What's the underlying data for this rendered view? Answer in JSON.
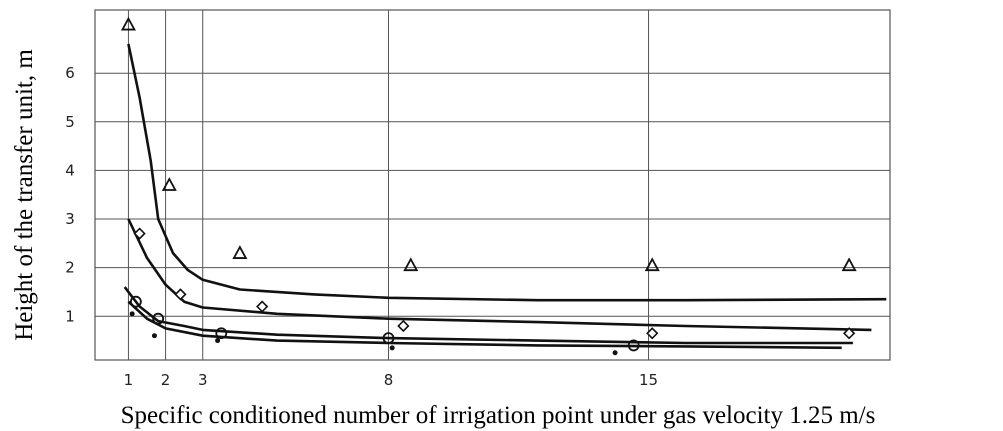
{
  "chart_data": {
    "type": "line",
    "xlabel": "Specific conditioned number of irrigation point under gas velocity 1.25 m/s",
    "ylabel": "Height of the transfer unit, m",
    "x_ticks": [
      "1",
      "2",
      "3",
      "8",
      "15"
    ],
    "y_ticks": [
      "1",
      "2",
      "3",
      "4",
      "5",
      "6"
    ],
    "xlim": [
      0.1,
      21.5
    ],
    "ylim": [
      0.1,
      7.3
    ],
    "grid": true,
    "series": [
      {
        "marker": "triangle",
        "points": [
          [
            1,
            7.0
          ],
          [
            2.1,
            3.7
          ],
          [
            4.0,
            2.3
          ],
          [
            8.6,
            2.05
          ],
          [
            15.1,
            2.05
          ],
          [
            20.4,
            2.05
          ]
        ]
      },
      {
        "marker": "diamond",
        "points": [
          [
            1.3,
            2.7
          ],
          [
            2.4,
            1.45
          ],
          [
            4.6,
            1.2
          ],
          [
            8.4,
            0.8
          ],
          [
            15.1,
            0.65
          ],
          [
            20.4,
            0.65
          ]
        ]
      },
      {
        "marker": "circle",
        "points": [
          [
            1.2,
            1.3
          ],
          [
            1.8,
            0.95
          ],
          [
            3.5,
            0.65
          ],
          [
            8.0,
            0.55
          ],
          [
            14.6,
            0.4
          ]
        ]
      },
      {
        "marker": "filled-dot",
        "points": [
          [
            1.1,
            1.05
          ],
          [
            1.7,
            0.6
          ],
          [
            3.4,
            0.5
          ],
          [
            8.1,
            0.35
          ],
          [
            14.1,
            0.25
          ]
        ]
      },
      {
        "marker": "none",
        "points": [
          [
            1,
            6.6
          ],
          [
            1.3,
            5.5
          ],
          [
            1.6,
            4.2
          ],
          [
            1.8,
            3.0
          ],
          [
            2.2,
            2.3
          ],
          [
            2.6,
            1.95
          ],
          [
            3,
            1.75
          ],
          [
            4,
            1.55
          ],
          [
            6,
            1.45
          ],
          [
            8,
            1.38
          ],
          [
            12,
            1.33
          ],
          [
            16,
            1.33
          ],
          [
            21.4,
            1.35
          ]
        ]
      },
      {
        "marker": "none",
        "points": [
          [
            1,
            3.0
          ],
          [
            1.5,
            2.2
          ],
          [
            2,
            1.65
          ],
          [
            2.5,
            1.3
          ],
          [
            3,
            1.18
          ],
          [
            5,
            1.05
          ],
          [
            8,
            0.95
          ],
          [
            12,
            0.88
          ],
          [
            16,
            0.8
          ],
          [
            21,
            0.72
          ]
        ]
      },
      {
        "marker": "none",
        "points": [
          [
            0.9,
            1.6
          ],
          [
            1.3,
            1.2
          ],
          [
            1.8,
            0.9
          ],
          [
            2.5,
            0.8
          ],
          [
            3,
            0.72
          ],
          [
            5,
            0.62
          ],
          [
            8,
            0.55
          ],
          [
            12,
            0.5
          ],
          [
            16,
            0.45
          ],
          [
            20.5,
            0.45
          ]
        ]
      },
      {
        "marker": "none",
        "points": [
          [
            1,
            1.3
          ],
          [
            1.5,
            0.95
          ],
          [
            2,
            0.75
          ],
          [
            3,
            0.6
          ],
          [
            5,
            0.5
          ],
          [
            8,
            0.45
          ],
          [
            12,
            0.4
          ],
          [
            16,
            0.38
          ],
          [
            20.2,
            0.35
          ]
        ]
      }
    ]
  }
}
